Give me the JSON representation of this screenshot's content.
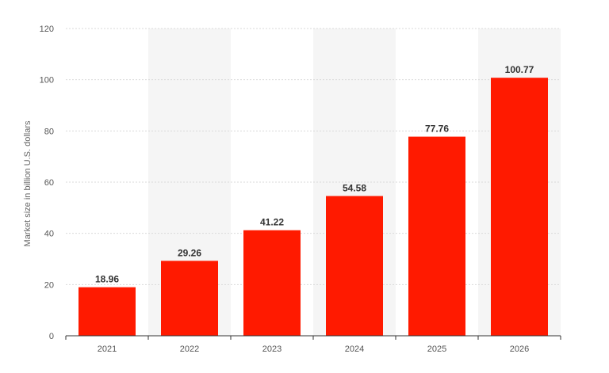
{
  "chart_data": {
    "type": "bar",
    "categories": [
      "2021",
      "2022",
      "2023",
      "2024",
      "2025",
      "2026"
    ],
    "values": [
      18.96,
      29.26,
      41.22,
      54.58,
      77.76,
      100.77
    ],
    "data_labels": [
      "18.96",
      "29.26",
      "41.22",
      "54.58",
      "77.76",
      "100.77"
    ],
    "title": "",
    "xlabel": "",
    "ylabel": "Market size in billion U.S. dollars",
    "ylim": [
      0,
      120
    ],
    "yticks": [
      0,
      20,
      40,
      60,
      80,
      100,
      120
    ],
    "ytick_labels": [
      "0",
      "20",
      "40",
      "60",
      "80",
      "100",
      "120"
    ],
    "grid": true,
    "alternate_column_shading": true,
    "colors": {
      "bar": "#ff1a00",
      "band": "#f5f5f5",
      "grid": "#d9d9d9",
      "axis": "#333333"
    }
  }
}
